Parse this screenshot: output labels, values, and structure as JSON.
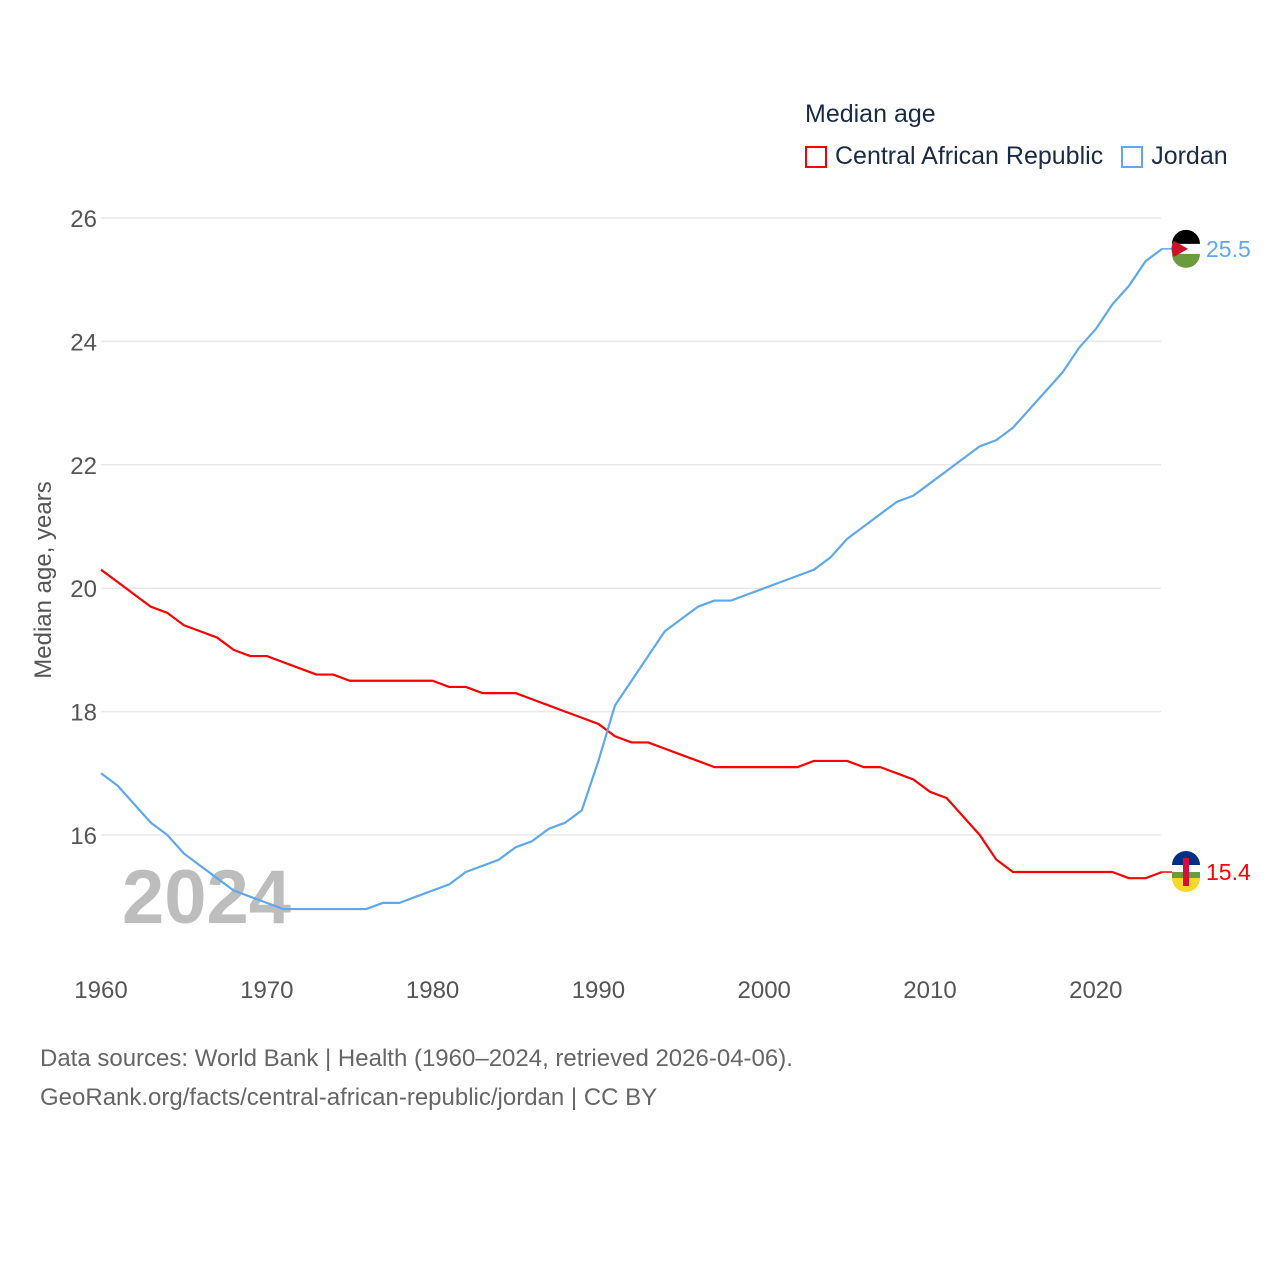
{
  "chart_data": {
    "type": "line",
    "legend_title": "Median age",
    "ylabel": "Median age, years",
    "xlim": [
      1960,
      2024
    ],
    "ylim": [
      14,
      26
    ],
    "yticks": [
      16,
      18,
      20,
      22,
      24,
      26
    ],
    "xticks": [
      1960,
      1970,
      1980,
      1990,
      2000,
      2010,
      2020
    ],
    "grid": true,
    "legend_placement": "top-right",
    "watermark_year": "2024",
    "x": [
      1960,
      1961,
      1962,
      1963,
      1964,
      1965,
      1966,
      1967,
      1968,
      1969,
      1970,
      1971,
      1972,
      1973,
      1974,
      1975,
      1976,
      1977,
      1978,
      1979,
      1980,
      1981,
      1982,
      1983,
      1984,
      1985,
      1986,
      1987,
      1988,
      1989,
      1990,
      1991,
      1992,
      1993,
      1994,
      1995,
      1996,
      1997,
      1998,
      1999,
      2000,
      2001,
      2002,
      2003,
      2004,
      2005,
      2006,
      2007,
      2008,
      2009,
      2010,
      2011,
      2012,
      2013,
      2014,
      2015,
      2016,
      2017,
      2018,
      2019,
      2020,
      2021,
      2022,
      2023,
      2024
    ],
    "series": [
      {
        "name": "Central African Republic",
        "color": "#ff0000",
        "end_label": "15.4",
        "values": [
          20.3,
          20.1,
          19.9,
          19.7,
          19.6,
          19.4,
          19.3,
          19.2,
          19.0,
          18.9,
          18.9,
          18.8,
          18.7,
          18.6,
          18.6,
          18.5,
          18.5,
          18.5,
          18.5,
          18.5,
          18.5,
          18.4,
          18.4,
          18.3,
          18.3,
          18.3,
          18.2,
          18.1,
          18.0,
          17.9,
          17.8,
          17.6,
          17.5,
          17.5,
          17.4,
          17.3,
          17.2,
          17.1,
          17.1,
          17.1,
          17.1,
          17.1,
          17.1,
          17.2,
          17.2,
          17.2,
          17.1,
          17.1,
          17.0,
          16.9,
          16.7,
          16.6,
          16.3,
          16.0,
          15.6,
          15.4,
          15.4,
          15.4,
          15.4,
          15.4,
          15.4,
          15.4,
          15.3,
          15.3,
          15.4
        ]
      },
      {
        "name": "Jordan",
        "color": "#5ea8ee",
        "end_label": "25.5",
        "values": [
          17.0,
          16.8,
          16.5,
          16.2,
          16.0,
          15.7,
          15.5,
          15.3,
          15.1,
          15.0,
          14.9,
          14.8,
          14.8,
          14.8,
          14.8,
          14.8,
          14.8,
          14.9,
          14.9,
          15.0,
          15.1,
          15.2,
          15.4,
          15.5,
          15.6,
          15.8,
          15.9,
          16.1,
          16.2,
          16.4,
          17.2,
          18.1,
          18.5,
          18.9,
          19.3,
          19.5,
          19.7,
          19.8,
          19.8,
          19.9,
          20.0,
          20.1,
          20.2,
          20.3,
          20.5,
          20.8,
          21.0,
          21.2,
          21.4,
          21.5,
          21.7,
          21.9,
          22.1,
          22.3,
          22.4,
          22.6,
          22.9,
          23.2,
          23.5,
          23.9,
          24.2,
          24.6,
          24.9,
          25.3,
          25.5
        ]
      }
    ]
  },
  "footer": {
    "line1": "Data sources: World Bank | Health (1960–2024, retrieved 2026-04-06).",
    "line2": "GeoRank.org/facts/central-african-republic/jordan | CC BY"
  }
}
